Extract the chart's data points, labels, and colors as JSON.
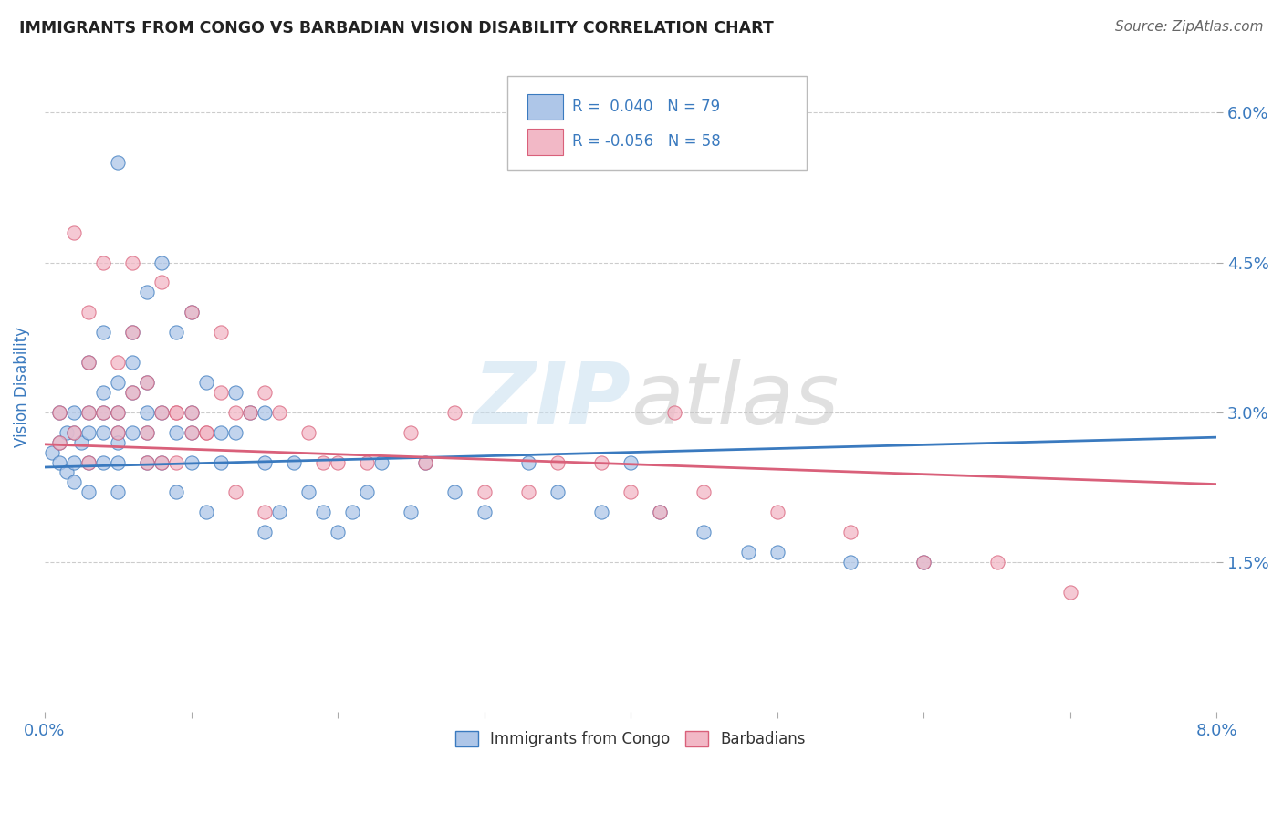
{
  "title": "IMMIGRANTS FROM CONGO VS BARBADIAN VISION DISABILITY CORRELATION CHART",
  "source": "Source: ZipAtlas.com",
  "ylabel": "Vision Disability",
  "legend_labels": [
    "Immigrants from Congo",
    "Barbadians"
  ],
  "blue_color": "#aec6e8",
  "pink_color": "#f2b8c6",
  "blue_line_color": "#3a7abf",
  "pink_line_color": "#d9607a",
  "blue_r_text": "R =  0.040",
  "blue_n_text": "N = 79",
  "pink_r_text": "R = -0.056",
  "pink_n_text": "N = 58",
  "text_color_blue": "#3a7abf",
  "text_color_pink": "#d9607a",
  "title_color": "#222222",
  "source_color": "#666666",
  "tick_label_color": "#3a7abf",
  "xlim": [
    0.0,
    0.08
  ],
  "ylim": [
    0.0,
    0.065
  ],
  "xticks": [
    0.0,
    0.01,
    0.02,
    0.03,
    0.04,
    0.05,
    0.06,
    0.07,
    0.08
  ],
  "xtick_labels": [
    "0.0%",
    "",
    "",
    "",
    "",
    "",
    "",
    "",
    "8.0%"
  ],
  "yticks": [
    0.015,
    0.03,
    0.045,
    0.06
  ],
  "ytick_labels": [
    "1.5%",
    "3.0%",
    "4.5%",
    "6.0%"
  ],
  "grid_color": "#cccccc",
  "background_color": "#ffffff",
  "blue_trend_x": [
    0.0,
    0.08
  ],
  "blue_trend_y": [
    0.0245,
    0.0275
  ],
  "pink_trend_x": [
    0.0,
    0.08
  ],
  "pink_trend_y": [
    0.0268,
    0.0228
  ],
  "blue_scatter_x": [
    0.0005,
    0.001,
    0.001,
    0.001,
    0.0015,
    0.0015,
    0.002,
    0.002,
    0.002,
    0.002,
    0.0025,
    0.003,
    0.003,
    0.003,
    0.003,
    0.003,
    0.004,
    0.004,
    0.004,
    0.004,
    0.004,
    0.005,
    0.005,
    0.005,
    0.005,
    0.005,
    0.005,
    0.006,
    0.006,
    0.006,
    0.006,
    0.007,
    0.007,
    0.007,
    0.007,
    0.008,
    0.008,
    0.008,
    0.009,
    0.009,
    0.009,
    0.01,
    0.01,
    0.01,
    0.011,
    0.011,
    0.012,
    0.012,
    0.013,
    0.013,
    0.014,
    0.015,
    0.015,
    0.016,
    0.017,
    0.018,
    0.019,
    0.02,
    0.021,
    0.022,
    0.023,
    0.025,
    0.026,
    0.028,
    0.03,
    0.033,
    0.035,
    0.038,
    0.04,
    0.042,
    0.045,
    0.048,
    0.05,
    0.055,
    0.06,
    0.005,
    0.007,
    0.01,
    0.015
  ],
  "blue_scatter_y": [
    0.026,
    0.027,
    0.025,
    0.03,
    0.024,
    0.028,
    0.028,
    0.025,
    0.023,
    0.03,
    0.027,
    0.03,
    0.028,
    0.022,
    0.025,
    0.035,
    0.032,
    0.028,
    0.038,
    0.025,
    0.03,
    0.028,
    0.025,
    0.03,
    0.022,
    0.033,
    0.027,
    0.035,
    0.032,
    0.028,
    0.038,
    0.03,
    0.025,
    0.033,
    0.028,
    0.045,
    0.03,
    0.025,
    0.038,
    0.028,
    0.022,
    0.03,
    0.025,
    0.028,
    0.033,
    0.02,
    0.028,
    0.025,
    0.032,
    0.028,
    0.03,
    0.03,
    0.025,
    0.02,
    0.025,
    0.022,
    0.02,
    0.018,
    0.02,
    0.022,
    0.025,
    0.02,
    0.025,
    0.022,
    0.02,
    0.025,
    0.022,
    0.02,
    0.025,
    0.02,
    0.018,
    0.016,
    0.016,
    0.015,
    0.015,
    0.055,
    0.042,
    0.04,
    0.018
  ],
  "pink_scatter_x": [
    0.001,
    0.001,
    0.002,
    0.002,
    0.003,
    0.003,
    0.003,
    0.004,
    0.004,
    0.005,
    0.005,
    0.005,
    0.006,
    0.006,
    0.007,
    0.007,
    0.008,
    0.008,
    0.009,
    0.009,
    0.01,
    0.01,
    0.011,
    0.012,
    0.013,
    0.014,
    0.015,
    0.016,
    0.018,
    0.019,
    0.02,
    0.022,
    0.025,
    0.026,
    0.028,
    0.03,
    0.033,
    0.035,
    0.038,
    0.04,
    0.042,
    0.043,
    0.045,
    0.05,
    0.055,
    0.06,
    0.065,
    0.07,
    0.003,
    0.006,
    0.008,
    0.01,
    0.012,
    0.015,
    0.007,
    0.009,
    0.011,
    0.013
  ],
  "pink_scatter_y": [
    0.027,
    0.03,
    0.028,
    0.048,
    0.04,
    0.025,
    0.03,
    0.045,
    0.03,
    0.03,
    0.028,
    0.035,
    0.032,
    0.038,
    0.033,
    0.028,
    0.03,
    0.025,
    0.03,
    0.025,
    0.03,
    0.028,
    0.028,
    0.032,
    0.03,
    0.03,
    0.032,
    0.03,
    0.028,
    0.025,
    0.025,
    0.025,
    0.028,
    0.025,
    0.03,
    0.022,
    0.022,
    0.025,
    0.025,
    0.022,
    0.02,
    0.03,
    0.022,
    0.02,
    0.018,
    0.015,
    0.015,
    0.012,
    0.035,
    0.045,
    0.043,
    0.04,
    0.038,
    0.02,
    0.025,
    0.03,
    0.028,
    0.022
  ]
}
